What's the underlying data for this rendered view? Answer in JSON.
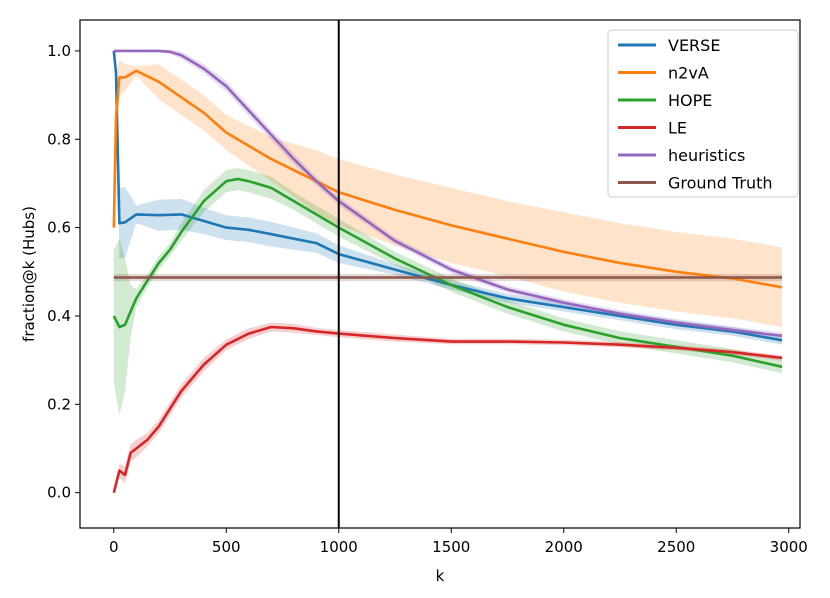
{
  "chart_data": {
    "type": "line",
    "title": "",
    "xlabel": "k",
    "ylabel": "fraction@k (Hubs)",
    "xlim": [
      -150,
      3050
    ],
    "ylim": [
      -0.08,
      1.07
    ],
    "xticks": [
      0,
      500,
      1000,
      1500,
      2000,
      2500,
      3000
    ],
    "xtick_labels": [
      "0",
      "500",
      "1000",
      "1500",
      "2000",
      "2500",
      "3000"
    ],
    "yticks": [
      0.0,
      0.2,
      0.4,
      0.6,
      0.8,
      1.0
    ],
    "ytick_labels": [
      "0.0",
      "0.2",
      "0.4",
      "0.6",
      "0.8",
      "1.0"
    ],
    "grid": false,
    "legend_position": "top-right",
    "vline": {
      "x": 1000,
      "color": "#000000"
    },
    "series": [
      {
        "name": "VERSE",
        "color": "#1f77b4",
        "x": [
          0,
          10,
          25,
          50,
          100,
          200,
          300,
          400,
          500,
          600,
          700,
          800,
          900,
          1000,
          1250,
          1500,
          1750,
          2000,
          2250,
          2500,
          2750,
          2970
        ],
        "y": [
          1.0,
          0.95,
          0.61,
          0.612,
          0.63,
          0.628,
          0.63,
          0.615,
          0.6,
          0.595,
          0.585,
          0.575,
          0.565,
          0.54,
          0.505,
          0.47,
          0.44,
          0.42,
          0.4,
          0.38,
          0.365,
          0.345
        ],
        "band": [
          0.0,
          0.01,
          0.08,
          0.08,
          0.02,
          0.035,
          0.035,
          0.03,
          0.028,
          0.028,
          0.028,
          0.025,
          0.022,
          0.02,
          0.012,
          0.01,
          0.01,
          0.01,
          0.01,
          0.01,
          0.01,
          0.01
        ]
      },
      {
        "name": "n2vA",
        "color": "#ff7f0e",
        "x": [
          0,
          10,
          25,
          50,
          100,
          200,
          300,
          400,
          500,
          600,
          700,
          800,
          900,
          1000,
          1250,
          1500,
          1750,
          2000,
          2250,
          2500,
          2750,
          2970
        ],
        "y": [
          0.6,
          0.85,
          0.94,
          0.94,
          0.955,
          0.93,
          0.895,
          0.86,
          0.815,
          0.785,
          0.755,
          0.73,
          0.705,
          0.68,
          0.64,
          0.605,
          0.575,
          0.545,
          0.52,
          0.5,
          0.485,
          0.465
        ],
        "band": [
          0.0,
          0.1,
          0.04,
          0.03,
          0.01,
          0.04,
          0.04,
          0.04,
          0.04,
          0.045,
          0.05,
          0.06,
          0.07,
          0.075,
          0.08,
          0.085,
          0.085,
          0.09,
          0.09,
          0.09,
          0.09,
          0.09
        ]
      },
      {
        "name": "HOPE",
        "color": "#2ca02c",
        "x": [
          0,
          25,
          50,
          75,
          100,
          150,
          200,
          250,
          300,
          400,
          500,
          550,
          600,
          700,
          800,
          900,
          1000,
          1250,
          1500,
          1750,
          2000,
          2250,
          2500,
          2750,
          2970
        ],
        "y": [
          0.4,
          0.375,
          0.38,
          0.41,
          0.44,
          0.48,
          0.52,
          0.55,
          0.59,
          0.66,
          0.705,
          0.71,
          0.705,
          0.69,
          0.66,
          0.63,
          0.6,
          0.53,
          0.47,
          0.42,
          0.38,
          0.35,
          0.33,
          0.31,
          0.285
        ],
        "band": [
          0.15,
          0.2,
          0.15,
          0.06,
          0.02,
          0.015,
          0.015,
          0.015,
          0.02,
          0.025,
          0.025,
          0.025,
          0.025,
          0.025,
          0.02,
          0.02,
          0.02,
          0.015,
          0.015,
          0.015,
          0.015,
          0.015,
          0.015,
          0.015,
          0.015
        ]
      },
      {
        "name": "LE",
        "color": "#d62728",
        "x": [
          0,
          25,
          50,
          75,
          100,
          150,
          200,
          250,
          300,
          400,
          500,
          600,
          700,
          800,
          900,
          1000,
          1250,
          1500,
          1750,
          2000,
          2250,
          2500,
          2750,
          2970
        ],
        "y": [
          0.0,
          0.05,
          0.04,
          0.09,
          0.1,
          0.12,
          0.15,
          0.19,
          0.23,
          0.29,
          0.335,
          0.36,
          0.375,
          0.372,
          0.365,
          0.36,
          0.35,
          0.342,
          0.342,
          0.34,
          0.335,
          0.328,
          0.318,
          0.305
        ],
        "band": [
          0.0,
          0.015,
          0.02,
          0.02,
          0.02,
          0.015,
          0.015,
          0.015,
          0.015,
          0.015,
          0.012,
          0.012,
          0.01,
          0.01,
          0.008,
          0.008,
          0.008,
          0.006,
          0.006,
          0.006,
          0.006,
          0.006,
          0.006,
          0.006
        ]
      },
      {
        "name": "heuristics",
        "color": "#9467bd",
        "x": [
          0,
          50,
          100,
          200,
          250,
          300,
          400,
          500,
          600,
          700,
          800,
          900,
          1000,
          1250,
          1500,
          1750,
          2000,
          2250,
          2500,
          2750,
          2970
        ],
        "y": [
          1.0,
          1.0,
          1.0,
          1.0,
          0.998,
          0.99,
          0.96,
          0.92,
          0.865,
          0.81,
          0.755,
          0.705,
          0.66,
          0.57,
          0.505,
          0.46,
          0.43,
          0.405,
          0.385,
          0.368,
          0.355
        ],
        "band": [
          0.0,
          0.0,
          0.0,
          0.003,
          0.005,
          0.008,
          0.01,
          0.012,
          0.012,
          0.012,
          0.012,
          0.01,
          0.01,
          0.008,
          0.008,
          0.008,
          0.008,
          0.008,
          0.008,
          0.008,
          0.008
        ]
      },
      {
        "name": "Ground Truth",
        "color": "#8c564b",
        "x": [
          0,
          2970
        ],
        "y": [
          0.487,
          0.487
        ],
        "band": [
          0.008,
          0.008
        ]
      }
    ]
  }
}
